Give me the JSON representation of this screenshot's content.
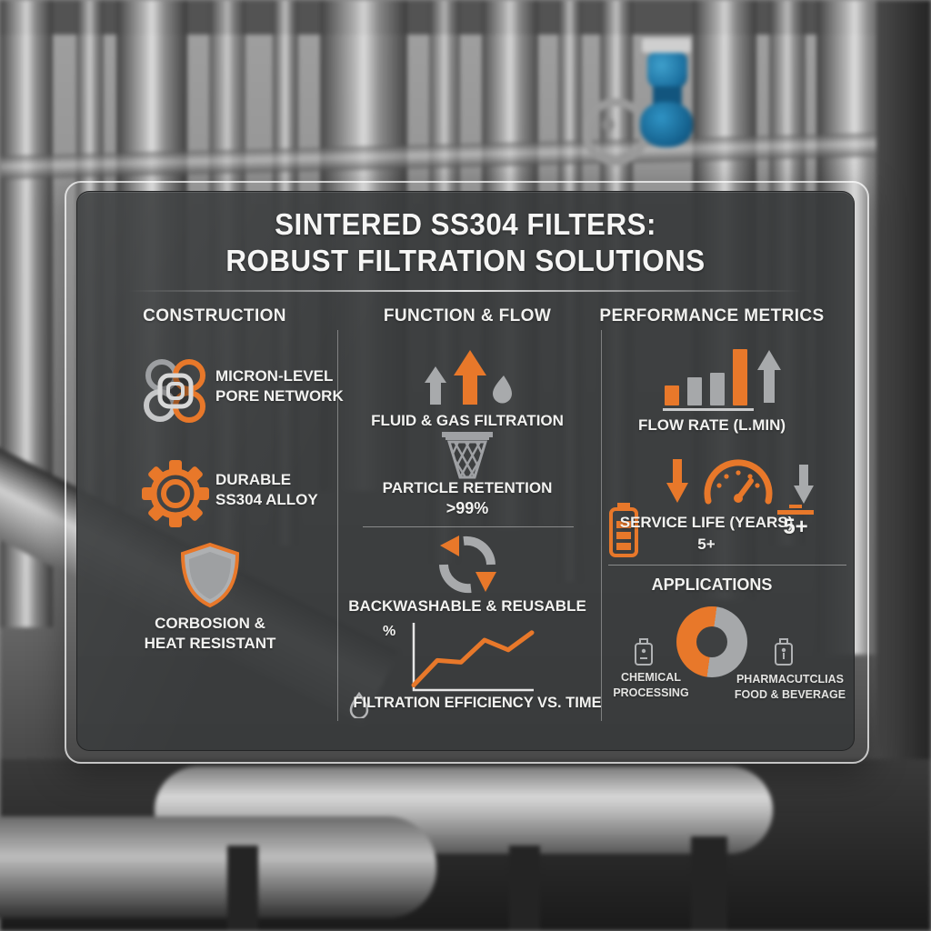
{
  "title": {
    "line1": "SINTERED SS304 FILTERS:",
    "line2": "ROBUST FILTRATION SOLUTIONS"
  },
  "columns": {
    "construction": {
      "header": "CONSTRUCTION",
      "pore": {
        "icon": "pore-network-icon",
        "line1": "MICRON-LEVEL",
        "line2": "PORE NETWORK"
      },
      "alloy": {
        "icon": "gear-icon",
        "line1": "DURABLE",
        "line2": "SS304 ALLOY"
      },
      "resist": {
        "icon": "shield-icon",
        "line1": "CORBOSION &",
        "line2": "HEAT RESISTANT"
      }
    },
    "function_flow": {
      "header": "FUNCTION & FLOW",
      "fluid_gas": {
        "icon": "up-arrows-droplet-icon",
        "label": "FLUID & GAS FILTRATION"
      },
      "particle": {
        "icon": "mesh-filter-icon",
        "label": "PARTICLE RETENTION",
        "value": ">99%"
      },
      "backwash": {
        "icon": "recycle-arrows-icon",
        "label": "BACKWASHABLE & REUSABLE"
      },
      "efficiency_chart": {
        "ylabel": "%",
        "icon": "droplet-outline-icon",
        "caption": "FILTRATION EFFICIENCY VS. TIME"
      }
    },
    "performance": {
      "header": "PERFORMANCE METRICS",
      "flow_rate": {
        "icon": "bar-chart-icon",
        "label": "FLOW RATE (L.MIN)"
      },
      "service_life": {
        "icons": "down-arrow-icon gauge-icon battery-icon",
        "label": "SERVICE LIFE (YEARS)",
        "value": "5+",
        "badge": "5+"
      },
      "applications": {
        "header": "APPLICATIONS",
        "app1": {
          "icon": "chemical-container-icon",
          "line1": "CHEMICAL",
          "line2": "PROCESSING"
        },
        "app2": {
          "icon": "pharma-container-icon",
          "line1": "PHARMACUTCLIAS",
          "line2": "FOOD & BEVERAGE"
        }
      }
    }
  },
  "colors": {
    "accent_orange": "#E8782A",
    "icon_gray": "#A6A8AA",
    "panel_dark": "#3A3C3D",
    "text_white": "#F2F2F0",
    "valve_blue": "#1E82B8"
  },
  "chart_data": [
    {
      "type": "line",
      "title": "FILTRATION EFFICIENCY VS. TIME",
      "xlabel": "TIME",
      "ylabel": "%",
      "x": [
        0,
        1,
        2,
        3,
        4,
        5
      ],
      "values": [
        5,
        45,
        42,
        78,
        62,
        90
      ],
      "ylim": [
        0,
        100
      ],
      "line_color": "#E8782A",
      "grid": false,
      "legend": "none"
    },
    {
      "type": "bar",
      "title": "FLOW RATE (L.MIN)",
      "categories": [
        "bar1",
        "bar2",
        "bar3",
        "bar4"
      ],
      "values": [
        35,
        50,
        58,
        100
      ],
      "colors": [
        "#E8782A",
        "#A6A8AA",
        "#A6A8AA",
        "#E8782A"
      ],
      "ylim": [
        0,
        100
      ],
      "annotation": "up-trend-arrow"
    },
    {
      "type": "pie",
      "title": "APPLICATIONS",
      "donut": true,
      "rotation_deg": 188,
      "slices": [
        {
          "label": "CHEMICAL PROCESSING",
          "value": 50,
          "color": "#E8782A"
        },
        {
          "label": "PHARMACUTCLIAS FOOD & BEVERAGE",
          "value": 50,
          "color": "#A6A8AA"
        }
      ]
    }
  ]
}
